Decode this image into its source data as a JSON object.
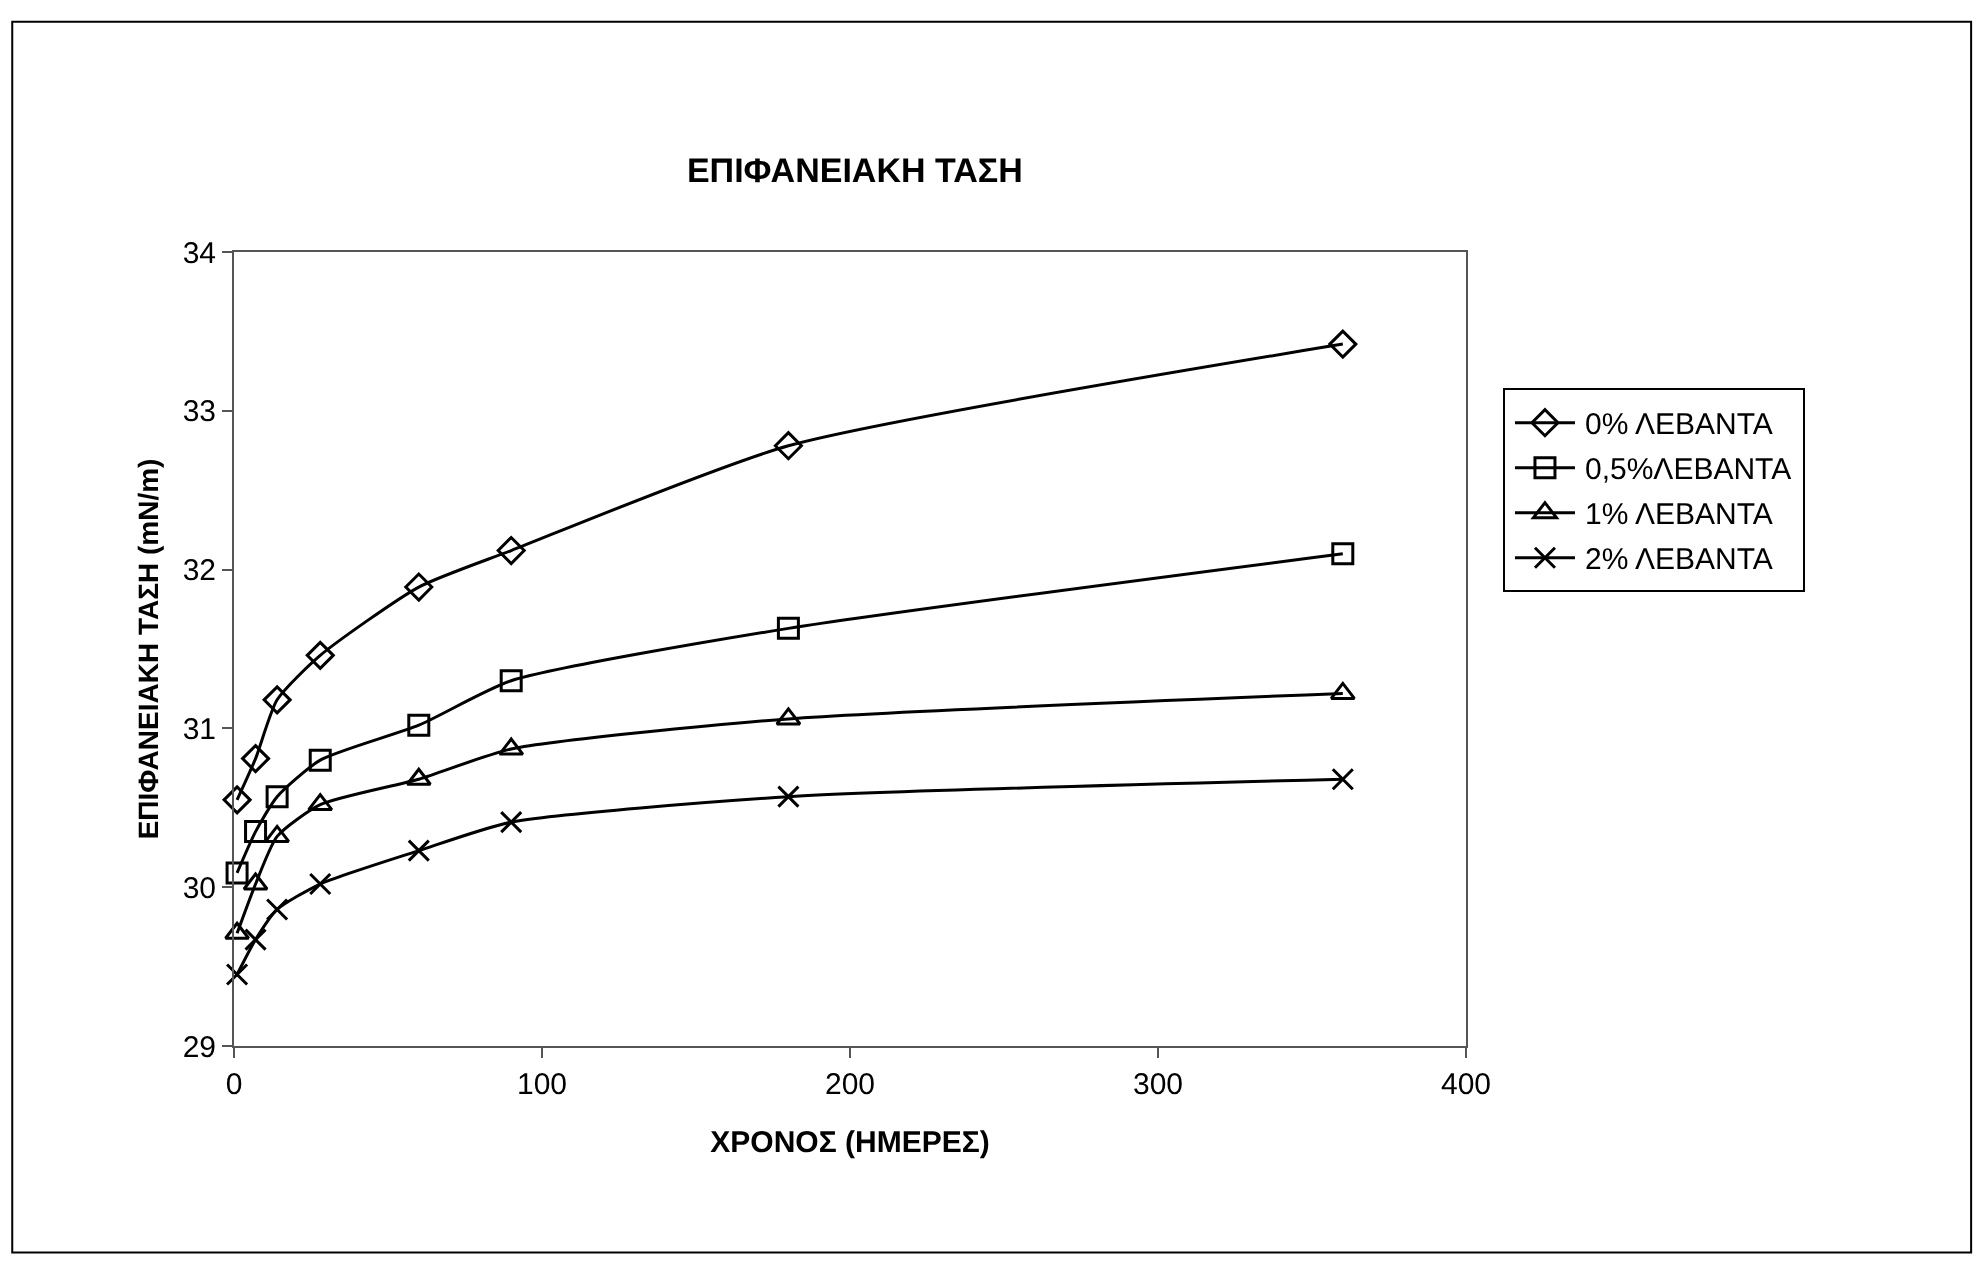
{
  "chart_data": {
    "type": "line",
    "title": "ΕΠΙΦΑΝΕΙΑΚΗ ΤΑΣΗ",
    "xlabel": "ΧΡΟΝΟΣ (ΗΜΕΡΕΣ)",
    "ylabel": "ΕΠΙΦΑΝΕΙΑΚΗ ΤΑΣΗ (mN/m)",
    "x": [
      1,
      7,
      14,
      28,
      60,
      90,
      180,
      360
    ],
    "series": [
      {
        "name": "0% ΛΕΒΑΝΤΑ",
        "color": "#000000",
        "marker": "diamond",
        "values": [
          30.55,
          30.81,
          31.18,
          31.46,
          31.89,
          32.12,
          32.78,
          33.42
        ]
      },
      {
        "name": "0,5%ΛΕΒΑΝΤΑ",
        "color": "#000000",
        "marker": "square",
        "values": [
          30.09,
          30.35,
          30.57,
          30.8,
          31.02,
          31.3,
          31.63,
          32.1
        ]
      },
      {
        "name": "1% ΛΕΒΑΝΤΑ",
        "color": "#000000",
        "marker": "triangle",
        "values": [
          29.71,
          30.02,
          30.32,
          30.52,
          30.68,
          30.87,
          31.06,
          31.22
        ]
      },
      {
        "name": "2% ΛΕΒΑΝΤΑ",
        "color": "#000000",
        "marker": "cross",
        "values": [
          29.45,
          29.67,
          29.86,
          30.02,
          30.23,
          30.41,
          30.57,
          30.68
        ]
      }
    ],
    "xlim": [
      0,
      400
    ],
    "xticks": [
      0,
      100,
      200,
      300,
      400
    ],
    "ylim": [
      29,
      34
    ],
    "yticks": [
      29,
      30,
      31,
      32,
      33,
      34
    ],
    "legend": "right",
    "line_style": "solid"
  }
}
